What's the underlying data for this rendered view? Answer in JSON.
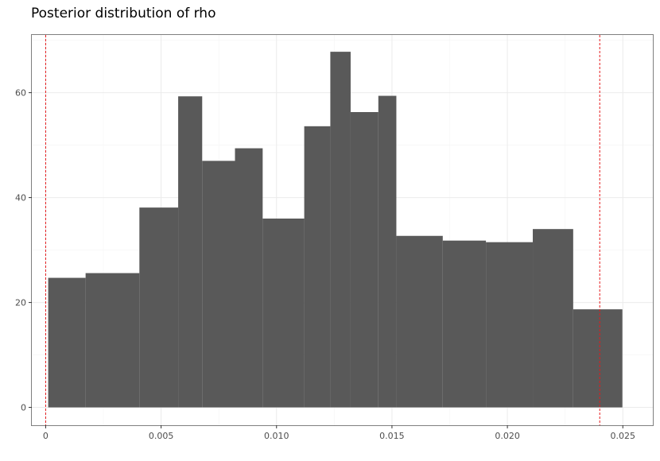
{
  "chart_data": {
    "type": "bar",
    "title": "Posterior distribution of rho",
    "xlabel": "",
    "ylabel": "",
    "xlim": [
      -0.0006,
      0.0263
    ],
    "ylim": [
      -3.4,
      71.0
    ],
    "grid": true,
    "x_ticks": [
      {
        "value": 0,
        "label": "0"
      },
      {
        "value": 0.005,
        "label": "0.005"
      },
      {
        "value": 0.01,
        "label": "0.010"
      },
      {
        "value": 0.015,
        "label": "0.015"
      },
      {
        "value": 0.02,
        "label": "0.020"
      },
      {
        "value": 0.025,
        "label": "0.025"
      }
    ],
    "y_ticks": [
      {
        "value": 0,
        "label": "0"
      },
      {
        "value": 20,
        "label": "20"
      },
      {
        "value": 40,
        "label": "40"
      },
      {
        "value": 60,
        "label": "60"
      }
    ],
    "bins": [
      {
        "x0": 0.00011,
        "x1": 0.00173,
        "count": 24.7
      },
      {
        "x0": 0.00173,
        "x1": 0.00406,
        "count": 25.6
      },
      {
        "x0": 0.00406,
        "x1": 0.00574,
        "count": 38.1
      },
      {
        "x0": 0.00574,
        "x1": 0.00678,
        "count": 59.3
      },
      {
        "x0": 0.00678,
        "x1": 0.0082,
        "count": 47.0
      },
      {
        "x0": 0.0082,
        "x1": 0.0094,
        "count": 49.4
      },
      {
        "x0": 0.0094,
        "x1": 0.0112,
        "count": 36.0
      },
      {
        "x0": 0.0112,
        "x1": 0.01233,
        "count": 53.6
      },
      {
        "x0": 0.01233,
        "x1": 0.01321,
        "count": 67.8
      },
      {
        "x0": 0.01321,
        "x1": 0.01441,
        "count": 56.3
      },
      {
        "x0": 0.01441,
        "x1": 0.01519,
        "count": 59.4
      },
      {
        "x0": 0.01519,
        "x1": 0.0172,
        "count": 32.7
      },
      {
        "x0": 0.0172,
        "x1": 0.01907,
        "count": 31.8
      },
      {
        "x0": 0.01907,
        "x1": 0.0211,
        "count": 31.5
      },
      {
        "x0": 0.0211,
        "x1": 0.02285,
        "count": 34.0
      },
      {
        "x0": 0.02285,
        "x1": 0.02498,
        "count": 18.7
      }
    ],
    "reference_lines": [
      0.0,
      0.024
    ],
    "colors": {
      "bar": "#595959",
      "reference_line": "#e41a1c",
      "grid_major": "#ebebeb",
      "grid_minor": "#f5f5f5",
      "panel_border": "#7f7f7f"
    }
  }
}
